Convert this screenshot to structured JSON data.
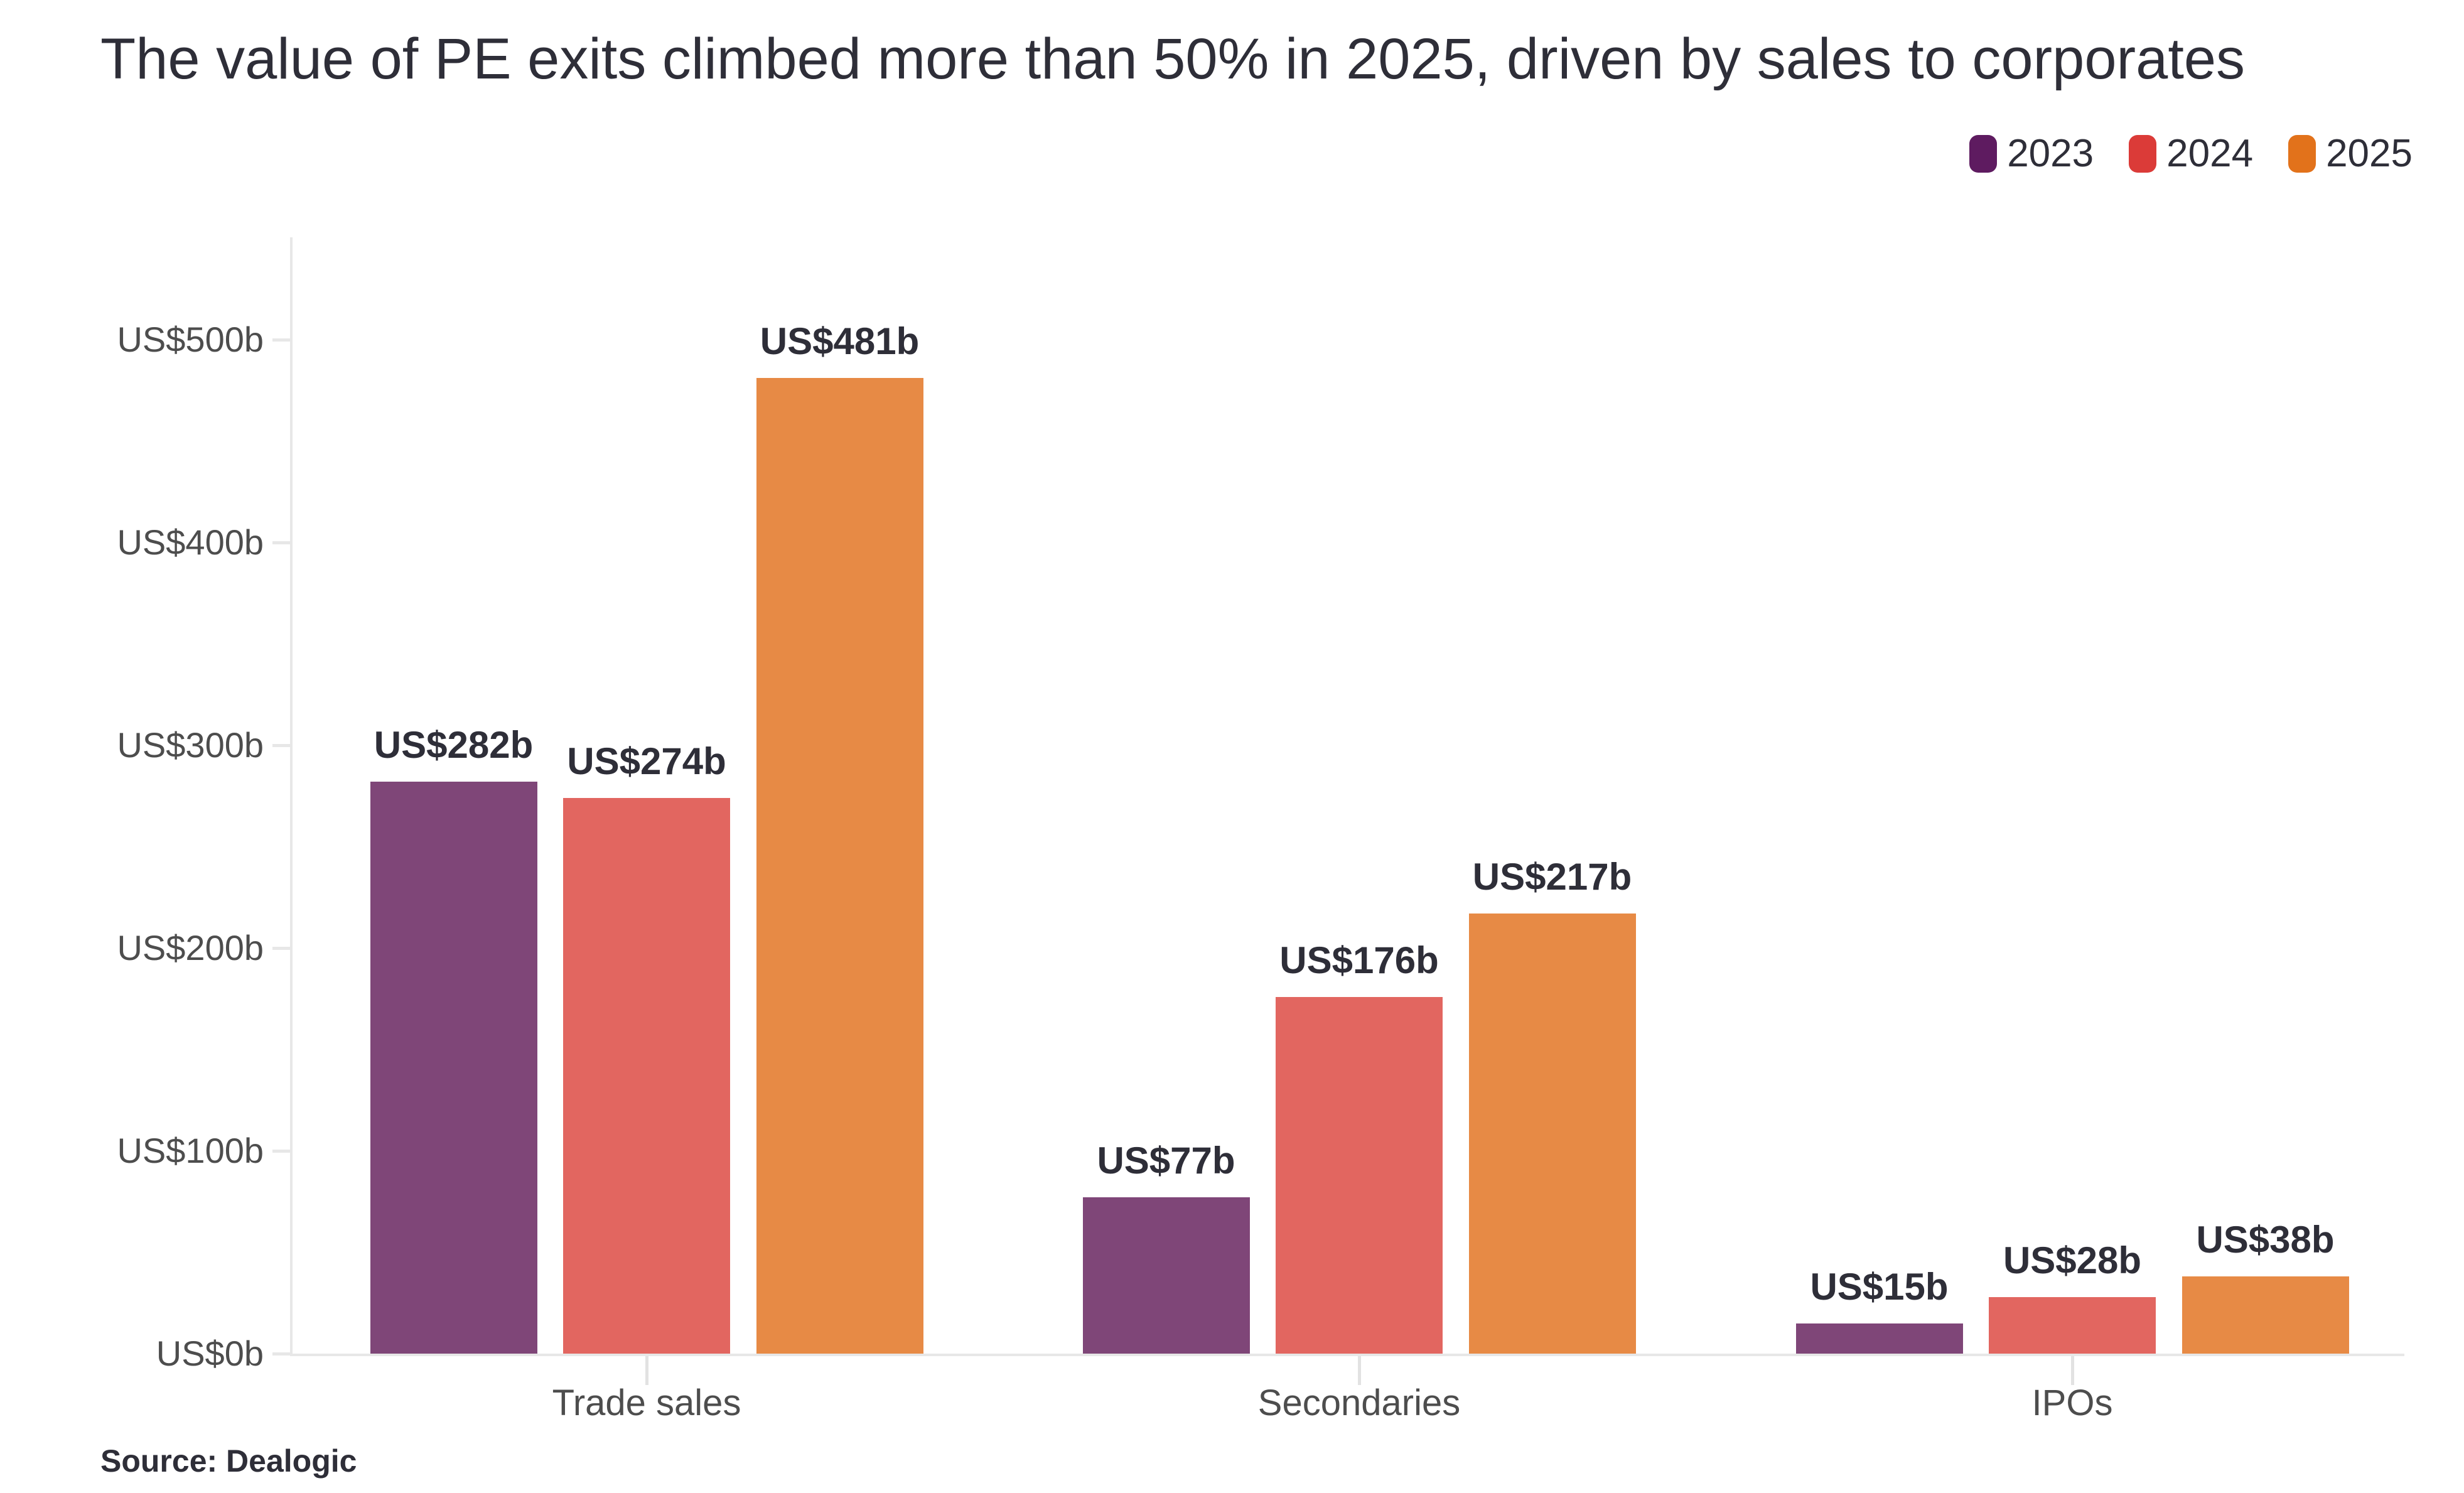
{
  "chart_data": {
    "type": "bar",
    "title": "The value of PE exits climbed more than 50% in 2025, driven by sales to corporates",
    "source": "Source: Dealogic",
    "categories": [
      "Trade sales",
      "Secondaries",
      "IPOs"
    ],
    "series": [
      {
        "name": "2023",
        "legend_color": "#5E1B60",
        "bar_color": "#7F4678",
        "values": [
          282,
          77,
          15
        ],
        "labels": [
          "US$282b",
          "US$77b",
          "US$15b"
        ]
      },
      {
        "name": "2024",
        "legend_color": "#DB3B38",
        "bar_color": "#E26660",
        "values": [
          274,
          176,
          28
        ],
        "labels": [
          "US$274b",
          "US$176b",
          "US$28b"
        ]
      },
      {
        "name": "2025",
        "legend_color": "#E2721B",
        "bar_color": "#E78A45",
        "values": [
          481,
          217,
          38
        ],
        "labels": [
          "US$481b",
          "US$217b",
          "US$38b"
        ]
      }
    ],
    "y_axis": {
      "tick_values": [
        0,
        100,
        200,
        300,
        400,
        500
      ],
      "tick_labels": [
        "US$0b",
        "US$100b",
        "US$200b",
        "US$300b",
        "US$400b",
        "US$500b"
      ],
      "ylim": [
        0,
        500
      ]
    },
    "xlabel": "",
    "ylabel": "",
    "legend_position": "top-right",
    "grid": "off",
    "colors": {
      "title_text": "#2e2e38",
      "axis_text": "#4d4d4d",
      "value_label_text": "#2e2e38",
      "axis_line": "#e7e7e7",
      "background": "#ffffff"
    }
  }
}
